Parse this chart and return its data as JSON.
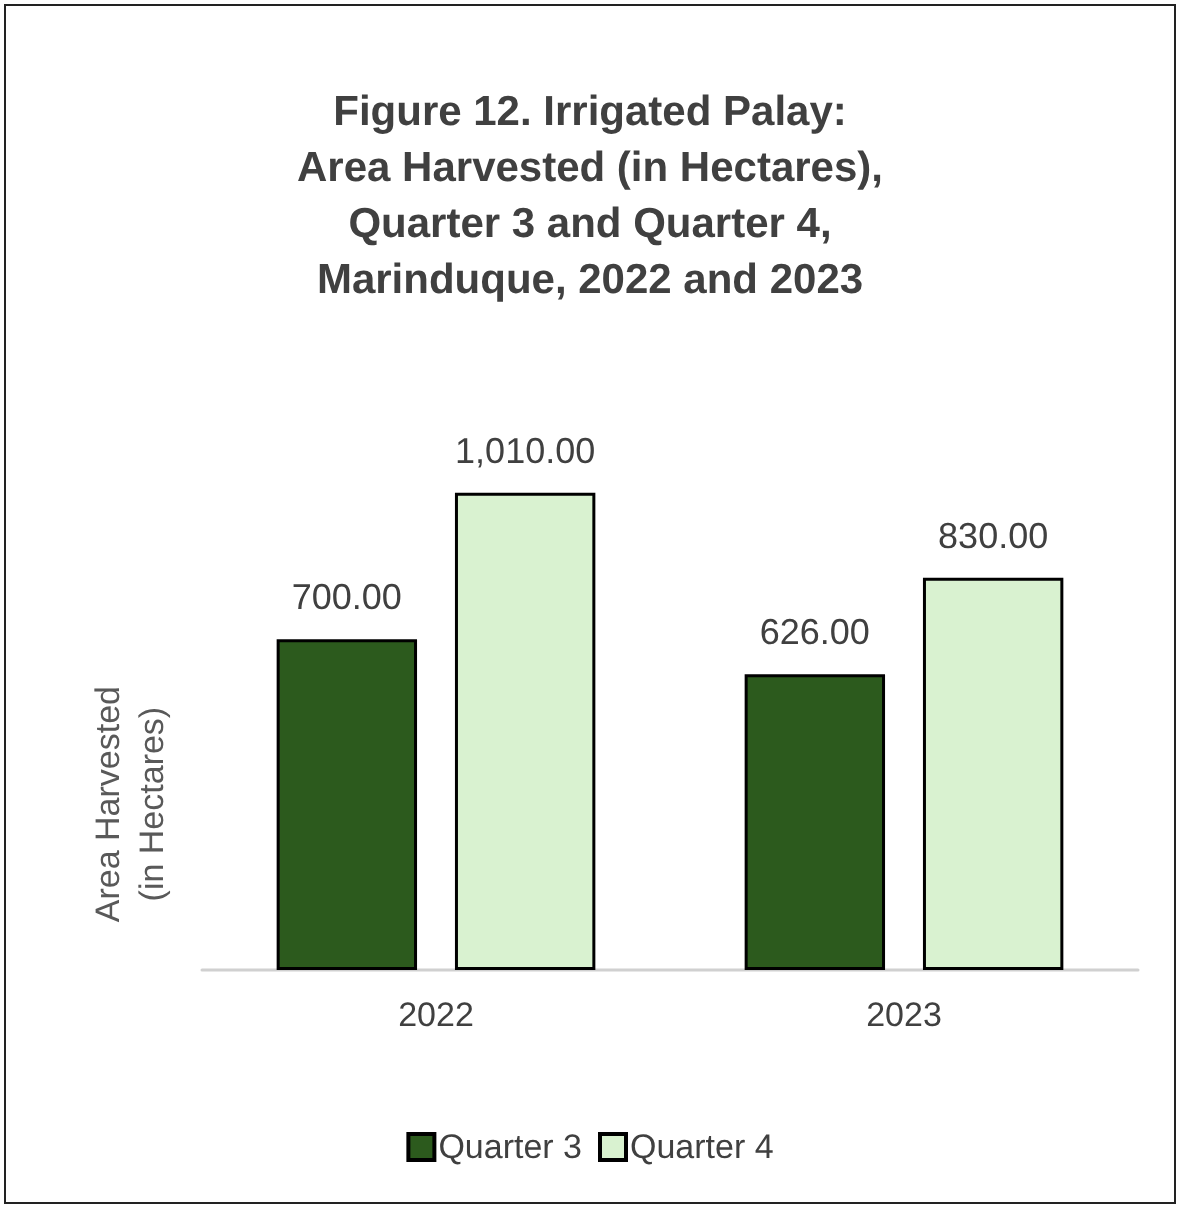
{
  "chart_data": {
    "type": "bar",
    "title": "Figure 12. Irrigated Palay:\nArea Harvested (in Hectares),\nQuarter 3 and Quarter 4,\nMarinduque, 2022 and 2023",
    "ylabel": "Area Harvested\n(in Hectares)",
    "categories": [
      "2022",
      "2023"
    ],
    "series": [
      {
        "name": "Quarter 3",
        "color": "#2c5a1d",
        "values": [
          700,
          626
        ],
        "value_labels": [
          "700.00",
          "626.00"
        ]
      },
      {
        "name": "Quarter 4",
        "color": "#d9f2d0",
        "values": [
          1010,
          830
        ],
        "value_labels": [
          "1,010.00",
          "830.00"
        ]
      }
    ],
    "legend": "bottom"
  }
}
